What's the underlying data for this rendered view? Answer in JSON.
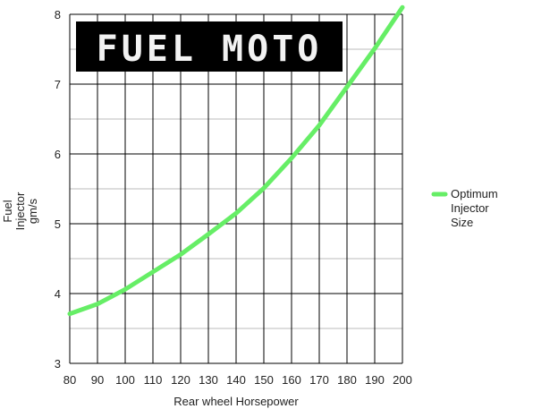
{
  "chart_data": {
    "type": "line",
    "logo_text": "FUEL MOTO",
    "x_label": "Rear wheel Horsepower",
    "y_label": "Fuel Injector gm/s",
    "x": [
      80,
      90,
      100,
      110,
      120,
      130,
      140,
      150,
      160,
      170,
      180,
      190,
      200
    ],
    "series": [
      {
        "name": "Optimum Injector Size",
        "color": "#66ee66",
        "values": [
          3.71,
          3.85,
          4.06,
          4.31,
          4.56,
          4.85,
          5.15,
          5.51,
          5.94,
          6.41,
          6.96,
          7.51,
          8.1
        ]
      }
    ],
    "xlim": [
      80,
      200
    ],
    "xticks": [
      80,
      90,
      100,
      110,
      120,
      130,
      140,
      150,
      160,
      170,
      180,
      190,
      200
    ],
    "ylim": [
      3,
      8
    ],
    "yticks": [
      3,
      4,
      5,
      6,
      7,
      8
    ],
    "minor_yticks": [
      3.5,
      4.5,
      5.5,
      6.5,
      7.5
    ],
    "grid": true
  }
}
